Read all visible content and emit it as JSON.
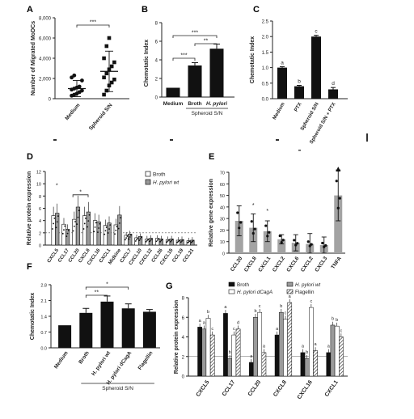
{
  "panel_letters": [
    "A",
    "B",
    "C",
    "D",
    "E",
    "F",
    "G"
  ],
  "chart_data": [
    {
      "panel": "A",
      "type": "scatter",
      "ylabel": "Number of Migrated MoDCs",
      "categories": [
        "Medium",
        "Spheroid S/N"
      ],
      "ylim": [
        0,
        8000
      ],
      "yticks": [
        "0",
        "2,000",
        "4,000",
        "6,000",
        "8,000"
      ],
      "points": [
        [
          300,
          400,
          500,
          650,
          800,
          900,
          1000,
          1100,
          1200,
          1800,
          2100,
          2300
        ],
        [
          400,
          800,
          1300,
          1600,
          1900,
          2100,
          2500,
          2900,
          3200,
          3600,
          4000,
          5200,
          6000
        ]
      ],
      "means": [
        1000,
        2700
      ],
      "sd": [
        800,
        2000
      ],
      "annotations": [
        "***"
      ]
    },
    {
      "panel": "B",
      "type": "bar",
      "ylabel": "Chemotatic Index",
      "categories": [
        "Medium",
        "Broth",
        "H. pylori"
      ],
      "values": [
        1,
        3.4,
        5.2
      ],
      "errors": [
        0,
        0.3,
        0.5
      ],
      "ylim": [
        0,
        8
      ],
      "group_label": "Spheroid S/N",
      "annotations": [
        "***",
        "***",
        "**"
      ]
    },
    {
      "panel": "C",
      "type": "bar",
      "ylabel": "Chemotatic Index",
      "categories": [
        "Medium",
        "PTX",
        "Spheroid S/N",
        "Spheroid S/N + PTX"
      ],
      "values": [
        1,
        0.4,
        2.0,
        0.3
      ],
      "errors": [
        0.03,
        0.03,
        0.04,
        0.06
      ],
      "ylim": [
        0,
        2.5
      ],
      "letters": [
        "a",
        "b",
        "c",
        "d"
      ]
    },
    {
      "panel": "D",
      "type": "bar",
      "ylabel": "Relative protein expression",
      "categories": [
        "CXCL5",
        "CCL17",
        "CCL20",
        "CXCL8",
        "CXCL16",
        "CXCL1",
        "Midkine",
        "CXCL7",
        "CXCL10",
        "CXCL12",
        "CCL26",
        "CXCL15",
        "CCL19",
        "CCL21"
      ],
      "series": [
        {
          "name": "Broth",
          "values": [
            4.8,
            3.4,
            4.2,
            4.8,
            4.0,
            3.2,
            3.3,
            1.6,
            1.2,
            1.0,
            1.1,
            0.9,
            0.8,
            0.7
          ]
        },
        {
          "name": "H. pylori wt",
          "values": [
            5.2,
            2.6,
            6.2,
            5.4,
            3.8,
            3.6,
            4.9,
            1.8,
            1.4,
            1.1,
            1.0,
            1.0,
            0.9,
            0.8
          ]
        }
      ],
      "ylim": [
        0,
        12
      ],
      "baseline": 2,
      "annotations": [
        "*",
        "*"
      ]
    },
    {
      "panel": "E",
      "type": "bar",
      "ylabel": "Relative gene expression",
      "categories": [
        "CCL20",
        "CXCL8",
        "CXCL1",
        "CXCL2",
        "CXCL6",
        "CXCL2",
        "CXCL3",
        "TNFA"
      ],
      "values": [
        28,
        22,
        19,
        12,
        9,
        8,
        7,
        50
      ],
      "errors": [
        13,
        12,
        9,
        4,
        7,
        9,
        7,
        22
      ],
      "ylim": [
        0,
        70
      ],
      "annotations": [
        "*",
        "*"
      ]
    },
    {
      "panel": "F",
      "type": "bar",
      "ylabel": "Chemotatic Index",
      "categories": [
        "Medium",
        "Broth",
        "H. pylori wt",
        "H. pylori dCagA",
        "Flagellin"
      ],
      "values": [
        1.0,
        1.55,
        2.05,
        1.75,
        1.6
      ],
      "errors": [
        0,
        0.2,
        0.25,
        0.2,
        0.1
      ],
      "ylim": [
        0,
        2.8
      ],
      "group_label": "Spheroid S/N",
      "annotations": [
        "*",
        "**"
      ]
    },
    {
      "panel": "G",
      "type": "bar",
      "ylabel": "Relative protein expression",
      "categories": [
        "CXCL5",
        "CCL17",
        "CCL20",
        "CXCL8",
        "CXCL16",
        "CXCL1"
      ],
      "series": [
        {
          "name": "Broth",
          "values": [
            5.0,
            6.4,
            1.4,
            4.2,
            2.4,
            2.4
          ]
        },
        {
          "name": "H. pylori wt",
          "values": [
            4.8,
            1.8,
            6.0,
            6.5,
            1.8,
            5.2
          ]
        },
        {
          "name": "H. pylori dCagA",
          "values": [
            5.9,
            4.2,
            6.5,
            5.8,
            7.0,
            5.1
          ]
        },
        {
          "name": "Flagellin",
          "values": [
            4.2,
            4.8,
            2.4,
            7.5,
            2.6,
            4.0
          ]
        }
      ],
      "letters": [
        [
          "a",
          "a",
          "b",
          "c"
        ],
        [
          "a",
          "b",
          "c",
          "d"
        ],
        [
          "a",
          "b",
          "c",
          "a"
        ],
        [
          "a",
          "b",
          "c",
          "a"
        ],
        [
          "a",
          "b",
          "c",
          "a"
        ],
        [
          "a",
          "b",
          "b",
          "c"
        ]
      ],
      "ylim": [
        0,
        8
      ],
      "yticks": [
        "0",
        "2",
        "4",
        "6",
        "8"
      ],
      "baseline": 2
    }
  ]
}
